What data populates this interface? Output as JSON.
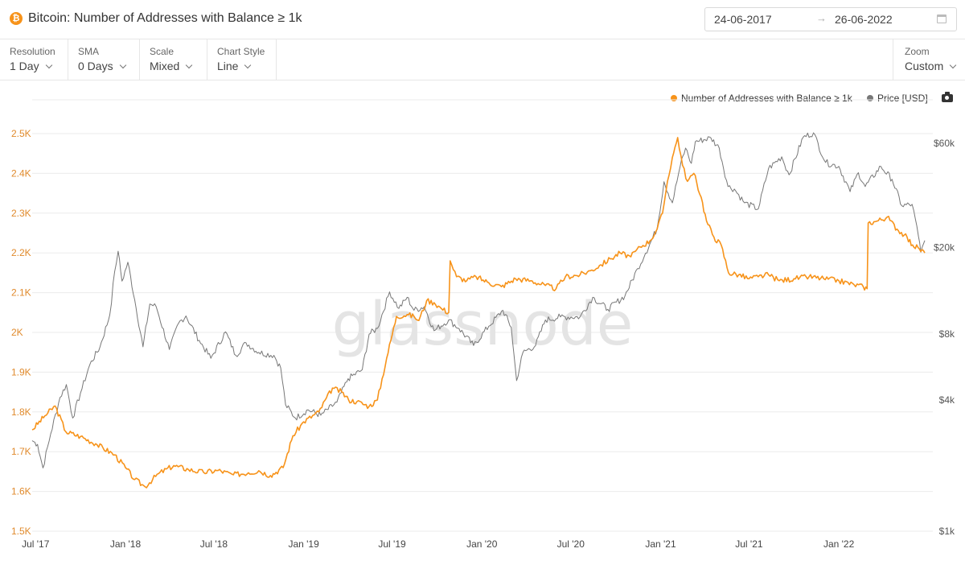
{
  "header": {
    "title": "Bitcoin: Number of Addresses with Balance ≥ 1k",
    "coin_icon": "bitcoin-icon",
    "coin_glyph": "₿",
    "date_from": "24-06-2017",
    "date_arrow": "→",
    "date_to": "26-06-2022",
    "calendar_icon": "calendar-icon"
  },
  "toolbar": {
    "resolution": {
      "label": "Resolution",
      "value": "1 Day"
    },
    "sma": {
      "label": "SMA",
      "value": "0 Days"
    },
    "scale": {
      "label": "Scale",
      "value": "Mixed"
    },
    "chart_style": {
      "label": "Chart Style",
      "value": "Line"
    },
    "zoom": {
      "label": "Zoom",
      "value": "Custom"
    }
  },
  "watermark": "glassnode",
  "colors": {
    "series_addresses": "#f7931a",
    "series_price": "#777777",
    "left_axis": "#e08a2c",
    "grid": "#ebebeb"
  },
  "chart_data": {
    "type": "line",
    "legend_position": "top-right",
    "x_tick_labels": [
      "Jul '17",
      "Jan '18",
      "Jul '18",
      "Jan '19",
      "Jul '19",
      "Jan '20",
      "Jul '20",
      "Jan '21",
      "Jul '21",
      "Jan '22"
    ],
    "y_left": {
      "tick_labels": [
        "1.5K",
        "1.6K",
        "1.7K",
        "1.8K",
        "1.9K",
        "2K",
        "2.1K",
        "2.2K",
        "2.3K",
        "2.4K",
        "2.5K"
      ],
      "min": 1500,
      "max": 2500,
      "scale": "linear"
    },
    "y_right": {
      "tick_labels": [
        "$1k",
        "$4k",
        "$8k",
        "$20k",
        "$60k"
      ],
      "tick_values": [
        1000,
        4000,
        8000,
        20000,
        60000
      ],
      "min": 1000,
      "max": 60000,
      "scale": "log"
    },
    "grid": true,
    "series": [
      {
        "name": "Number of Addresses with Balance ≥ 1k",
        "axis": "left",
        "x": [
          "2017-06-24",
          "2017-07-20",
          "2017-08-10",
          "2017-09-01",
          "2017-10-01",
          "2017-11-01",
          "2017-12-10",
          "2018-01-01",
          "2018-01-20",
          "2018-02-10",
          "2018-03-10",
          "2018-04-10",
          "2018-05-10",
          "2018-06-10",
          "2018-07-10",
          "2018-08-10",
          "2018-09-10",
          "2018-10-01",
          "2018-10-25",
          "2018-11-20",
          "2018-12-10",
          "2019-01-01",
          "2019-02-01",
          "2019-03-01",
          "2019-03-20",
          "2019-04-03",
          "2019-04-20",
          "2019-05-15",
          "2019-06-01",
          "2019-06-20",
          "2019-07-10",
          "2019-08-01",
          "2019-08-15",
          "2019-08-25",
          "2019-09-10",
          "2019-09-25",
          "2019-10-10",
          "2019-10-25",
          "2019-10-28",
          "2019-11-10",
          "2019-12-01",
          "2019-12-20",
          "2020-01-15",
          "2020-02-10",
          "2020-03-10",
          "2020-04-10",
          "2020-05-10",
          "2020-06-01",
          "2020-06-20",
          "2020-07-20",
          "2020-08-10",
          "2020-09-01",
          "2020-09-20",
          "2020-10-10",
          "2020-11-01",
          "2020-11-20",
          "2020-12-10",
          "2020-12-25",
          "2021-01-05",
          "2021-01-15",
          "2021-01-25",
          "2021-02-05",
          "2021-02-15",
          "2021-02-25",
          "2021-03-10",
          "2021-03-25",
          "2021-04-05",
          "2021-04-20",
          "2021-05-05",
          "2021-05-20",
          "2021-06-10",
          "2021-07-01",
          "2021-07-20",
          "2021-08-10",
          "2021-09-01",
          "2021-10-01",
          "2021-11-01",
          "2021-12-01",
          "2022-01-01",
          "2022-02-01",
          "2022-02-20",
          "2022-02-28",
          "2022-03-02",
          "2022-03-20",
          "2022-04-10",
          "2022-04-30",
          "2022-05-15",
          "2022-06-01",
          "2022-06-15",
          "2022-06-26"
        ],
        "values": [
          1755,
          1790,
          1815,
          1750,
          1738,
          1720,
          1692,
          1660,
          1630,
          1612,
          1645,
          1665,
          1655,
          1648,
          1653,
          1642,
          1647,
          1652,
          1640,
          1660,
          1740,
          1775,
          1800,
          1860,
          1850,
          1830,
          1826,
          1814,
          1830,
          1935,
          2040,
          2045,
          2040,
          2030,
          2080,
          2075,
          2060,
          2050,
          2180,
          2140,
          2130,
          2140,
          2125,
          2115,
          2135,
          2130,
          2118,
          2110,
          2140,
          2145,
          2155,
          2170,
          2185,
          2200,
          2190,
          2215,
          2230,
          2260,
          2300,
          2380,
          2440,
          2490,
          2420,
          2380,
          2400,
          2340,
          2280,
          2240,
          2220,
          2150,
          2145,
          2135,
          2140,
          2145,
          2130,
          2135,
          2140,
          2135,
          2130,
          2120,
          2115,
          2110,
          2275,
          2280,
          2290,
          2260,
          2245,
          2220,
          2210,
          2200
        ]
      },
      {
        "name": "Price [USD]",
        "axis": "right",
        "x": [
          "2017-06-24",
          "2017-07-05",
          "2017-07-16",
          "2017-08-01",
          "2017-08-20",
          "2017-09-02",
          "2017-09-15",
          "2017-10-01",
          "2017-10-20",
          "2017-11-10",
          "2017-11-30",
          "2017-12-10",
          "2017-12-17",
          "2017-12-25",
          "2018-01-06",
          "2018-01-20",
          "2018-02-06",
          "2018-02-20",
          "2018-03-05",
          "2018-04-01",
          "2018-04-20",
          "2018-05-05",
          "2018-06-01",
          "2018-06-25",
          "2018-07-25",
          "2018-08-15",
          "2018-09-05",
          "2018-10-01",
          "2018-11-01",
          "2018-11-15",
          "2018-11-25",
          "2018-12-15",
          "2019-01-10",
          "2019-02-05",
          "2019-03-10",
          "2019-04-02",
          "2019-05-01",
          "2019-05-15",
          "2019-06-01",
          "2019-06-26",
          "2019-07-15",
          "2019-08-01",
          "2019-08-15",
          "2019-09-05",
          "2019-09-25",
          "2019-10-25",
          "2019-11-15",
          "2019-12-15",
          "2020-01-15",
          "2020-02-13",
          "2020-03-01",
          "2020-03-12",
          "2020-03-25",
          "2020-04-20",
          "2020-05-10",
          "2020-06-10",
          "2020-07-20",
          "2020-08-15",
          "2020-09-15",
          "2020-10-20",
          "2020-11-15",
          "2020-12-01",
          "2020-12-25",
          "2021-01-08",
          "2021-01-25",
          "2021-02-10",
          "2021-02-21",
          "2021-03-05",
          "2021-03-13",
          "2021-04-14",
          "2021-05-01",
          "2021-05-19",
          "2021-06-01",
          "2021-06-22",
          "2021-07-20",
          "2021-08-10",
          "2021-09-06",
          "2021-09-21",
          "2021-10-20",
          "2021-11-10",
          "2021-12-05",
          "2022-01-01",
          "2022-01-24",
          "2022-02-10",
          "2022-02-24",
          "2022-03-28",
          "2022-04-20",
          "2022-05-10",
          "2022-05-31",
          "2022-06-13",
          "2022-06-18",
          "2022-06-26"
        ],
        "values": [
          2600,
          2500,
          1950,
          2800,
          4100,
          4700,
          3300,
          4300,
          5800,
          7000,
          9800,
          15500,
          19200,
          14000,
          17100,
          11500,
          7000,
          11000,
          10700,
          6800,
          9000,
          9700,
          7500,
          6200,
          8200,
          6400,
          7300,
          6600,
          6400,
          5600,
          3800,
          3300,
          3600,
          3400,
          3900,
          5000,
          5500,
          8000,
          8500,
          12500,
          10500,
          11800,
          10300,
          10700,
          8300,
          9300,
          8500,
          7100,
          8700,
          10300,
          8600,
          4900,
          6600,
          7100,
          9300,
          9600,
          9600,
          11800,
          10400,
          12000,
          16000,
          18800,
          24500,
          40000,
          32000,
          47000,
          57000,
          48500,
          61000,
          63500,
          57000,
          38000,
          37000,
          32000,
          30000,
          46000,
          52000,
          43000,
          64000,
          67000,
          49000,
          47000,
          36000,
          44000,
          38000,
          47000,
          41000,
          31000,
          31500,
          22500,
          19000,
          21500
        ]
      }
    ]
  }
}
